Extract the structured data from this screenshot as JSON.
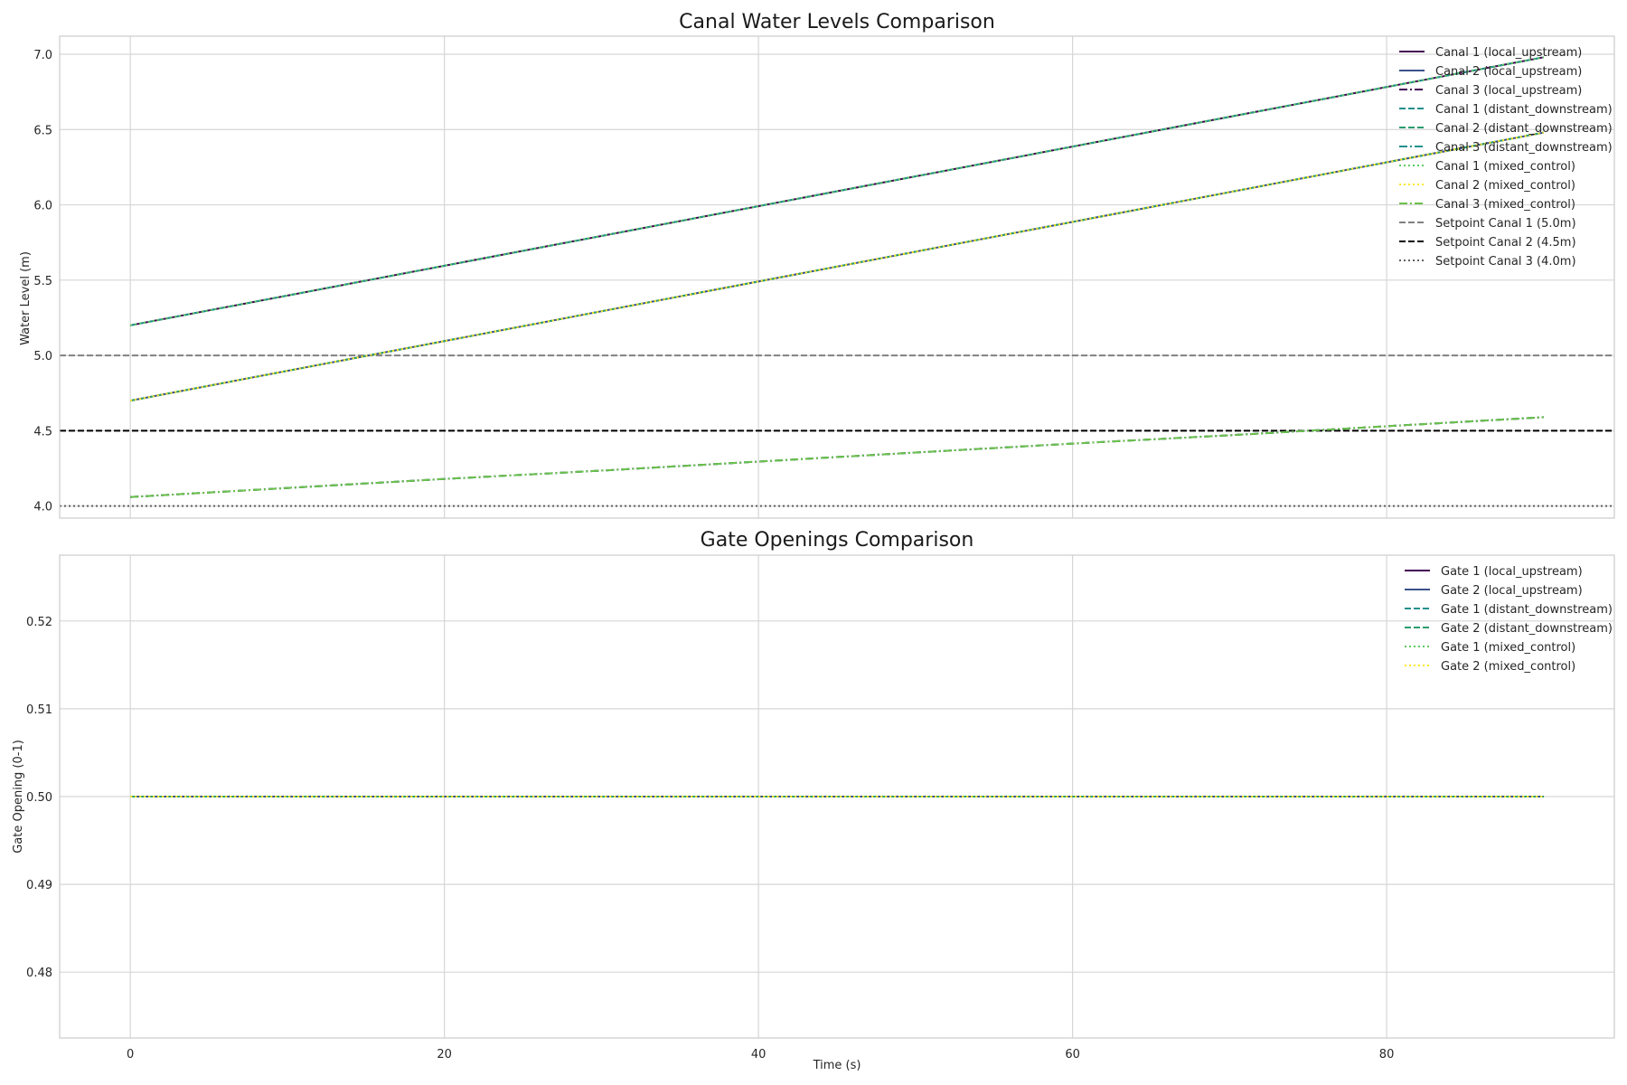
{
  "chart_data": [
    {
      "type": "line",
      "title": "Canal Water Levels Comparison",
      "xlabel": "",
      "ylabel": "Water Level (m)",
      "xlim": [
        -4.5,
        94.5
      ],
      "ylim": [
        3.92,
        7.12
      ],
      "x_ticks": [
        0,
        20,
        40,
        60,
        80
      ],
      "y_ticks": [
        4.0,
        4.5,
        5.0,
        5.5,
        6.0,
        6.5,
        7.0
      ],
      "y_tick_labels": [
        "4.0",
        "4.5",
        "5.0",
        "5.5",
        "6.0",
        "6.5",
        "7.0"
      ],
      "show_x_tick_labels": false,
      "grid": true,
      "legend_position": "top-right",
      "series": [
        {
          "name": "Canal 1 (local_upstream)",
          "color": "#440154",
          "style": "solid",
          "x": [
            0,
            90
          ],
          "y": [
            5.2,
            6.98
          ]
        },
        {
          "name": "Canal 2 (local_upstream)",
          "color": "#3b528b",
          "style": "solid",
          "x": [
            0,
            90
          ],
          "y": [
            4.7,
            6.48
          ]
        },
        {
          "name": "Canal 3 (local_upstream)",
          "color": "#440154",
          "style": "dashdot",
          "x": [
            0,
            10,
            20,
            30,
            40,
            50,
            60,
            70,
            80,
            90
          ],
          "y": [
            4.06,
            4.12,
            4.18,
            4.235,
            4.295,
            4.355,
            4.415,
            4.47,
            4.53,
            4.59
          ]
        },
        {
          "name": "Canal 1 (distant_downstream)",
          "color": "#21918c",
          "style": "dashed",
          "x": [
            0,
            90
          ],
          "y": [
            5.2,
            6.98
          ]
        },
        {
          "name": "Canal 2 (distant_downstream)",
          "color": "#2a9d6e",
          "style": "dashed",
          "x": [
            0,
            90
          ],
          "y": [
            4.7,
            6.48
          ]
        },
        {
          "name": "Canal 3 (distant_downstream)",
          "color": "#21918c",
          "style": "dashdot",
          "x": [
            0,
            10,
            20,
            30,
            40,
            50,
            60,
            70,
            80,
            90
          ],
          "y": [
            4.06,
            4.12,
            4.18,
            4.235,
            4.295,
            4.355,
            4.415,
            4.47,
            4.53,
            4.59
          ]
        },
        {
          "name": "Canal 1 (mixed_control)",
          "color": "#5ec962",
          "style": "dotted",
          "x": [
            0,
            90
          ],
          "y": [
            5.2,
            6.98
          ]
        },
        {
          "name": "Canal 2 (mixed_control)",
          "color": "#fde725",
          "style": "dotted",
          "x": [
            0,
            90
          ],
          "y": [
            4.7,
            6.48
          ]
        },
        {
          "name": "Canal 3 (mixed_control)",
          "color": "#6cc24a",
          "style": "dashdot",
          "x": [
            0,
            10,
            20,
            30,
            40,
            50,
            60,
            70,
            80,
            90
          ],
          "y": [
            4.06,
            4.12,
            4.18,
            4.235,
            4.295,
            4.355,
            4.415,
            4.47,
            4.53,
            4.59
          ]
        }
      ],
      "reference_lines": [
        {
          "name": "Setpoint Canal 1 (5.0m)",
          "y": 5.0,
          "color": "#808080",
          "style": "dashed"
        },
        {
          "name": "Setpoint Canal 2 (4.5m)",
          "y": 4.5,
          "color": "#000000",
          "style": "dashed"
        },
        {
          "name": "Setpoint Canal 3 (4.0m)",
          "y": 4.0,
          "color": "#606060",
          "style": "dotted"
        }
      ]
    },
    {
      "type": "line",
      "title": "Gate Openings Comparison",
      "xlabel": "Time (s)",
      "ylabel": "Gate Opening (0-1)",
      "xlim": [
        -4.5,
        94.5
      ],
      "ylim": [
        0.4725,
        0.5275
      ],
      "x_ticks": [
        0,
        20,
        40,
        60,
        80
      ],
      "y_ticks": [
        0.48,
        0.49,
        0.5,
        0.51,
        0.52
      ],
      "y_tick_labels": [
        "0.48",
        "0.49",
        "0.50",
        "0.51",
        "0.52"
      ],
      "show_x_tick_labels": true,
      "grid": true,
      "legend_position": "top-right",
      "series": [
        {
          "name": "Gate 1 (local_upstream)",
          "color": "#440154",
          "style": "solid",
          "x": [
            0,
            90
          ],
          "y": [
            0.5,
            0.5
          ]
        },
        {
          "name": "Gate 2 (local_upstream)",
          "color": "#3b528b",
          "style": "solid",
          "x": [
            0,
            90
          ],
          "y": [
            0.5,
            0.5
          ]
        },
        {
          "name": "Gate 1 (distant_downstream)",
          "color": "#21918c",
          "style": "dashed",
          "x": [
            0,
            90
          ],
          "y": [
            0.5,
            0.5
          ]
        },
        {
          "name": "Gate 2 (distant_downstream)",
          "color": "#2a9d6e",
          "style": "dashed",
          "x": [
            0,
            90
          ],
          "y": [
            0.5,
            0.5
          ]
        },
        {
          "name": "Gate 1 (mixed_control)",
          "color": "#5ec962",
          "style": "dotted",
          "x": [
            0,
            90
          ],
          "y": [
            0.5,
            0.5
          ]
        },
        {
          "name": "Gate 2 (mixed_control)",
          "color": "#fde725",
          "style": "dotted",
          "x": [
            0,
            90
          ],
          "y": [
            0.5,
            0.5
          ]
        }
      ],
      "reference_lines": []
    }
  ]
}
